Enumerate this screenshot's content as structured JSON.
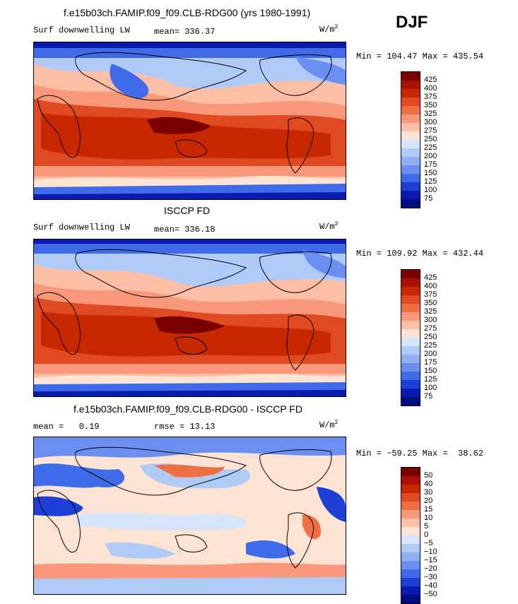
{
  "season": "DJF",
  "panels": [
    {
      "title": "f.e15b03ch.FAMIP.f09_f09.CLB-RDG00 (yrs 1980-1991)",
      "left_label": "Surf downwelling LW",
      "stat_label": "mean=",
      "stat_value": "336.37",
      "unit": "W/m",
      "unit_exp": "2",
      "minmax": "Min = 104.47 Max = 435.54",
      "colorbar": {
        "labels": [
          "425",
          "400",
          "375",
          "350",
          "325",
          "300",
          "275",
          "250",
          "225",
          "200",
          "175",
          "150",
          "125",
          "100",
          "75"
        ],
        "colors": [
          "#7a0000",
          "#a81200",
          "#c82800",
          "#e04a22",
          "#ef6f42",
          "#f8977a",
          "#fcbfa5",
          "#fde3d4",
          "#d6e4fb",
          "#b0caf7",
          "#8fb0f3",
          "#6a8ff0",
          "#3f6ae8",
          "#1d3fd6",
          "#0a1cb0",
          "#000d80"
        ]
      }
    },
    {
      "title": "ISCCP FD",
      "left_label": "Surf downwelling LW",
      "stat_label": "mean=",
      "stat_value": "336.18",
      "unit": "W/m",
      "unit_exp": "2",
      "minmax": "Min = 109.92 Max = 432.44",
      "colorbar": {
        "labels": [
          "425",
          "400",
          "375",
          "350",
          "325",
          "300",
          "275",
          "250",
          "225",
          "200",
          "175",
          "150",
          "125",
          "100",
          "75"
        ],
        "colors": [
          "#7a0000",
          "#a81200",
          "#c82800",
          "#e04a22",
          "#ef6f42",
          "#f8977a",
          "#fcbfa5",
          "#fde3d4",
          "#d6e4fb",
          "#b0caf7",
          "#8fb0f3",
          "#6a8ff0",
          "#3f6ae8",
          "#1d3fd6",
          "#0a1cb0",
          "#000d80"
        ]
      }
    },
    {
      "title": "f.e15b03ch.FAMIP.f09_f09.CLB-RDG00 - ISCCP FD",
      "left_label": "mean =   0.19",
      "stat_label": "rmse =",
      "stat_value": "13.13",
      "unit": "W/m",
      "unit_exp": "2",
      "minmax": "Min = −59.25 Max =  38.62",
      "colorbar": {
        "labels": [
          "50",
          "40",
          "30",
          "20",
          "15",
          "10",
          "5",
          "0",
          "−5",
          "−10",
          "−15",
          "−20",
          "−30",
          "−40",
          "−50"
        ],
        "colors": [
          "#7a0000",
          "#a81200",
          "#c82800",
          "#e04a22",
          "#ef6f42",
          "#f8977a",
          "#fcbfa5",
          "#fde3d4",
          "#d6e4fb",
          "#b0caf7",
          "#8fb0f3",
          "#6a8ff0",
          "#3f6ae8",
          "#1d3fd6",
          "#0a1cb0",
          "#000d80"
        ]
      }
    }
  ]
}
